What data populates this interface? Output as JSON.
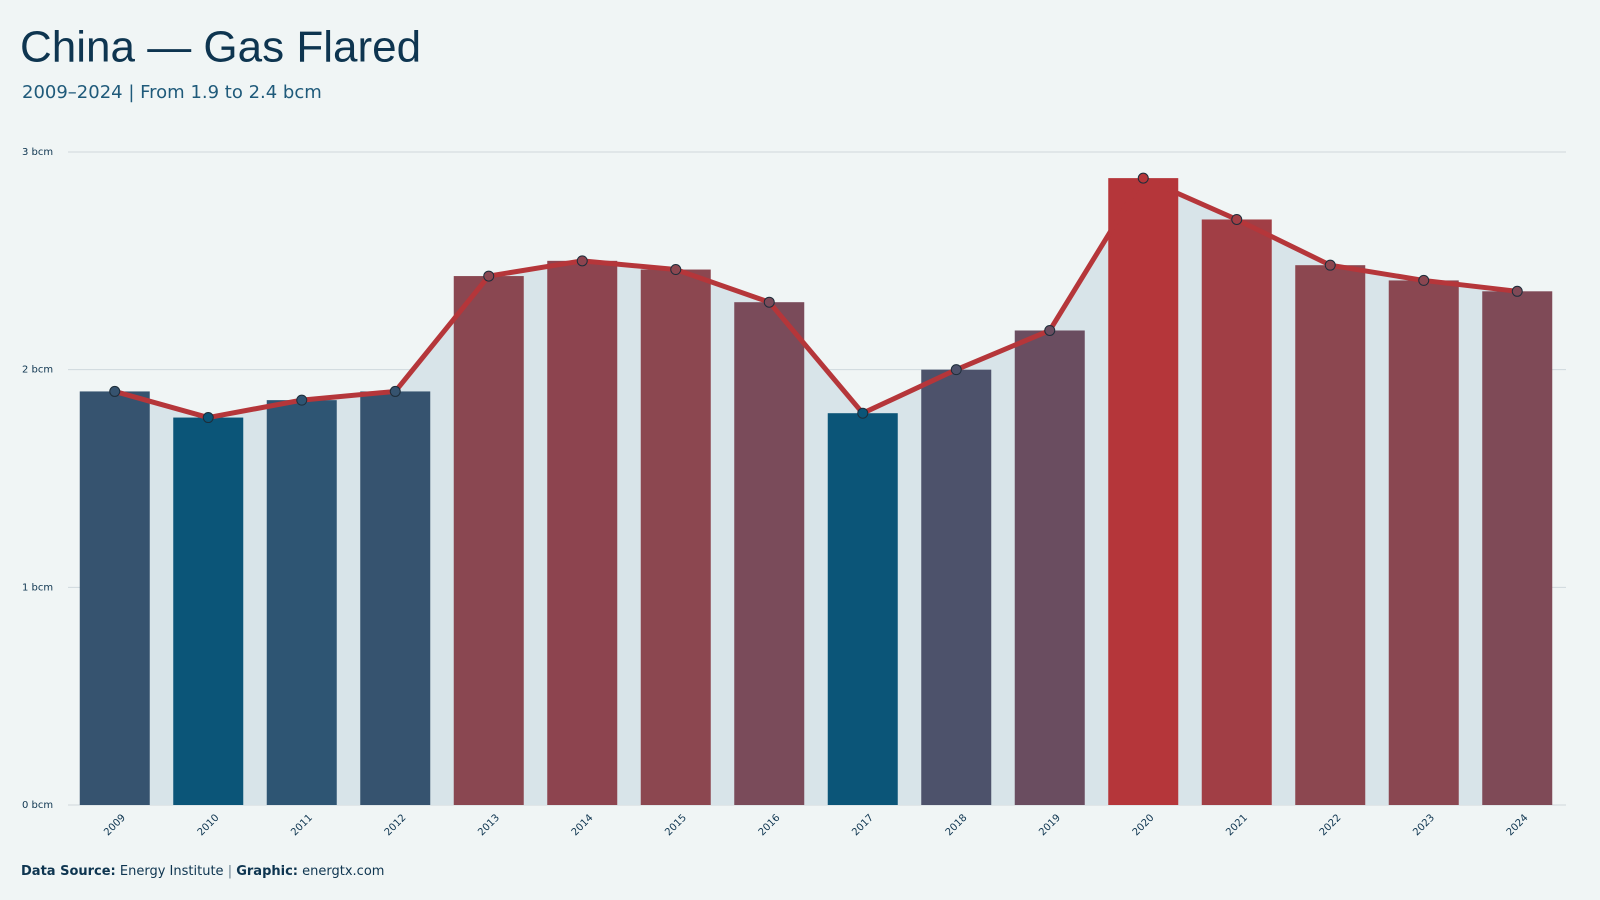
{
  "chart_data": {
    "type": "bar",
    "title": "China — Gas Flared",
    "subtitle": "2009–2024 | From 1.9 to 2.4 bcm",
    "categories": [
      "2009",
      "2010",
      "2011",
      "2012",
      "2013",
      "2014",
      "2015",
      "2016",
      "2017",
      "2018",
      "2019",
      "2020",
      "2021",
      "2022",
      "2023",
      "2024"
    ],
    "values": [
      1.9,
      1.78,
      1.86,
      1.9,
      2.43,
      2.5,
      2.46,
      2.31,
      1.8,
      2.0,
      2.18,
      2.88,
      2.69,
      2.48,
      2.41,
      2.36
    ],
    "colors": [
      "#36536f",
      "#0b5578",
      "#2e5573",
      "#36536f",
      "#8a4751",
      "#8d444f",
      "#8c4750",
      "#7a4b5a",
      "#0b5578",
      "#4d526b",
      "#6a4d60",
      "#b5363a",
      "#a13e45",
      "#8c4750",
      "#8a4751",
      "#7f4a57"
    ],
    "line_color": "#b5363a",
    "area_color": "#d8e4e9",
    "ylim": [
      0,
      3
    ],
    "yticks": [
      {
        "value": 0,
        "label": "0 bcm"
      },
      {
        "value": 1,
        "label": "1 bcm"
      },
      {
        "value": 2,
        "label": "2 bcm"
      },
      {
        "value": 3,
        "label": "3 bcm"
      }
    ],
    "grid": true,
    "footer": {
      "source_label": "Data Source:",
      "source": "Energy Institute",
      "separator": "|",
      "graphic_label": "Graphic:",
      "graphic": "energtx.com"
    }
  }
}
